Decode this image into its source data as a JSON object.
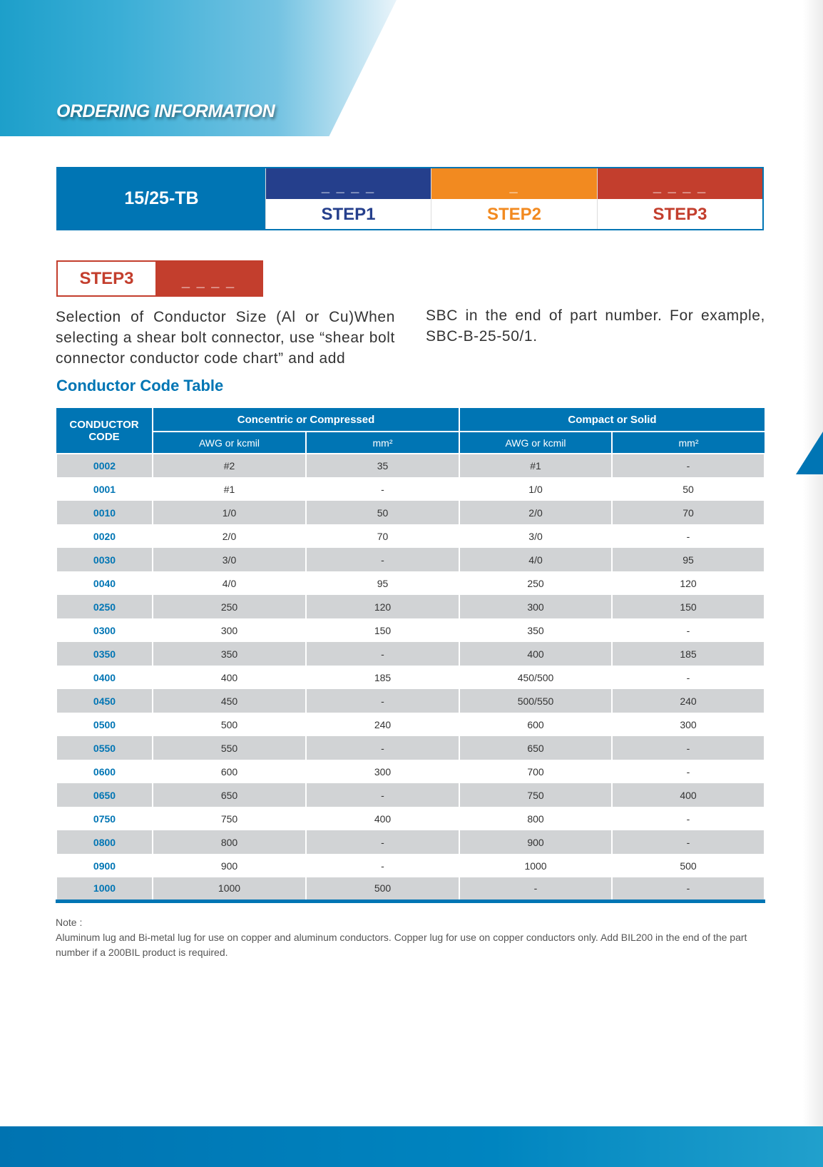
{
  "header": {
    "title": "ORDERING INFORMATION"
  },
  "steps": {
    "part_number": "15/25-TB",
    "items": [
      {
        "label": "STEP1",
        "placeholder": "_ _ _ _",
        "color": "#253f8c"
      },
      {
        "label": "STEP2",
        "placeholder": "_",
        "color": "#f28a20"
      },
      {
        "label": "STEP3",
        "placeholder": "_ _ _ _",
        "color": "#c33e2d"
      }
    ]
  },
  "step3": {
    "label": "STEP3",
    "placeholder": "_ _ _ _",
    "description_left": "Selection of Conductor Size (Al or Cu)When selecting a shear bolt connector, use “shear bolt connector conductor code chart” and add",
    "description_right": "SBC in the end of  part number. For example, SBC-B-25-50/1."
  },
  "table": {
    "title": "Conductor Code Table",
    "code_header": "CONDUCTOR CODE",
    "group1": "Concentric or Compressed",
    "group2": "Compact or Solid",
    "sub1": "AWG or kcmil",
    "sub2": "mm²",
    "sub3": "AWG or kcmil",
    "sub4": "mm²",
    "rows": [
      [
        "0002",
        "#2",
        "35",
        "#1",
        "-"
      ],
      [
        "0001",
        "#1",
        "-",
        "1/0",
        "50"
      ],
      [
        "0010",
        "1/0",
        "50",
        "2/0",
        "70"
      ],
      [
        "0020",
        "2/0",
        "70",
        "3/0",
        "-"
      ],
      [
        "0030",
        "3/0",
        "-",
        "4/0",
        "95"
      ],
      [
        "0040",
        "4/0",
        "95",
        "250",
        "120"
      ],
      [
        "0250",
        "250",
        "120",
        "300",
        "150"
      ],
      [
        "0300",
        "300",
        "150",
        "350",
        "-"
      ],
      [
        "0350",
        "350",
        "-",
        "400",
        "185"
      ],
      [
        "0400",
        "400",
        "185",
        "450/500",
        "-"
      ],
      [
        "0450",
        "450",
        "-",
        "500/550",
        "240"
      ],
      [
        "0500",
        "500",
        "240",
        "600",
        "300"
      ],
      [
        "0550",
        "550",
        "-",
        "650",
        "-"
      ],
      [
        "0600",
        "600",
        "300",
        "700",
        "-"
      ],
      [
        "0650",
        "650",
        "-",
        "750",
        "400"
      ],
      [
        "0750",
        "750",
        "400",
        "800",
        "-"
      ],
      [
        "0800",
        "800",
        "-",
        "900",
        "-"
      ],
      [
        "0900",
        "900",
        "-",
        "1000",
        "500"
      ],
      [
        "1000",
        "1000",
        "500",
        "-",
        "-"
      ]
    ]
  },
  "note": {
    "label": "Note :",
    "text": "Aluminum lug and Bi-metal lug for use on copper and aluminum conductors. Copper lug for use on copper conductors only. Add BIL200 in the end of the part number if a 200BIL product is required."
  }
}
